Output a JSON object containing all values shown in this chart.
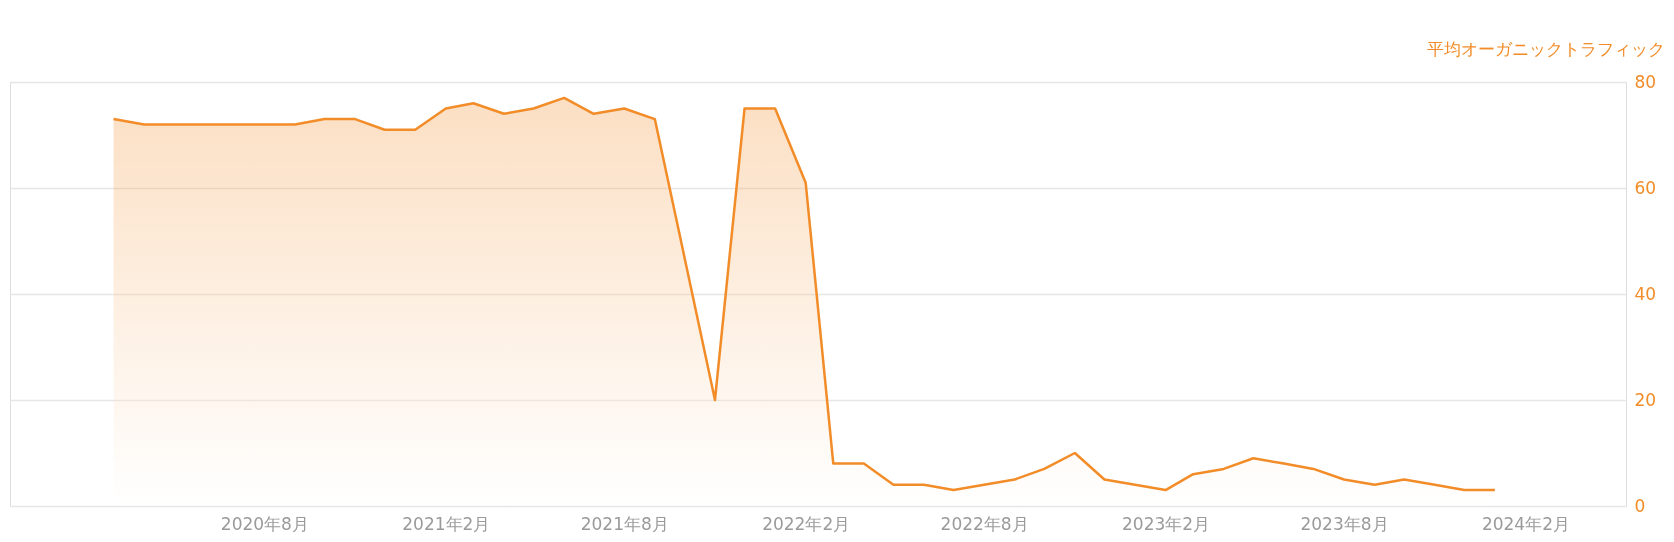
{
  "chart_data": {
    "type": "area",
    "ylabel": "平均オーガニックトラフィック",
    "x": [
      "2020-03",
      "2020-04",
      "2020-05",
      "2020-06",
      "2020-07",
      "2020-08",
      "2020-09",
      "2020-10",
      "2020-11",
      "2020-12",
      "2021-01",
      "2021-02",
      "2021-03",
      "2021-04",
      "2021-05",
      "2021-06",
      "2021-07",
      "2021-08",
      "2021-09",
      "2021-10",
      "2021-11",
      "2021-12",
      "2022-01",
      "2022-02",
      "2022-03",
      "2022-04",
      "2022-05",
      "2022-06",
      "2022-07",
      "2022-08",
      "2022-09",
      "2022-10",
      "2022-11",
      "2022-12",
      "2023-01",
      "2023-02",
      "2023-03",
      "2023-04",
      "2023-05",
      "2023-06",
      "2023-07",
      "2023-08",
      "2023-09",
      "2023-10",
      "2023-11",
      "2023-12",
      "2024-01"
    ],
    "series": [
      {
        "color": "#f28c28",
        "values": [
          73,
          72,
          72,
          72,
          72,
          72,
          72,
          73,
          73,
          71,
          71,
          75,
          76,
          74,
          75,
          77,
          74,
          75,
          73,
          47,
          20,
          75,
          75,
          61,
          8,
          8,
          4,
          4,
          3,
          4,
          5,
          7,
          10,
          5,
          4,
          3,
          6,
          7,
          9,
          8,
          7,
          5,
          4,
          5,
          4,
          3,
          3
        ]
      }
    ],
    "xlim": [
      "2019-11-17",
      "2024-05-13"
    ],
    "xticks": [
      {
        "value": "2020-08",
        "label": "2020年8月"
      },
      {
        "value": "2021-02",
        "label": "2021年2月"
      },
      {
        "value": "2021-08",
        "label": "2021年8月"
      },
      {
        "value": "2022-02",
        "label": "2022年2月"
      },
      {
        "value": "2022-08",
        "label": "2022年8月"
      },
      {
        "value": "2023-02",
        "label": "2023年2月"
      },
      {
        "value": "2023-08",
        "label": "2023年8月"
      },
      {
        "value": "2024-02",
        "label": "2024年2月"
      }
    ],
    "ylim": [
      0,
      80
    ],
    "yticks": [
      0,
      20,
      40,
      60,
      80
    ],
    "grid": "y"
  }
}
